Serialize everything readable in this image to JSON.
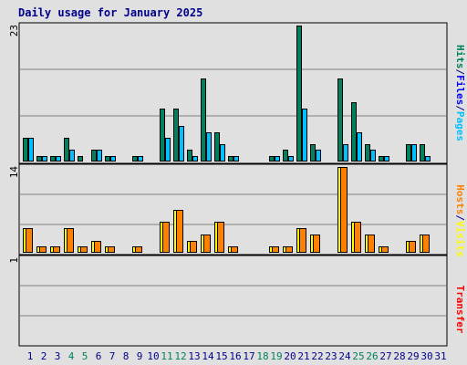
{
  "title": "Daily usage for January 2025",
  "chart_data": [
    {
      "type": "bar",
      "panel": "hits-files-pages",
      "side_labels": [
        {
          "text": "Hits",
          "color": "#00805c"
        },
        {
          "text": "/",
          "color": "#00008b"
        },
        {
          "text": "Files",
          "color": "#0000ff"
        },
        {
          "text": "/",
          "color": "#00008b"
        },
        {
          "text": "Pages",
          "color": "#00c0ff"
        }
      ],
      "ymax_label": "23",
      "ylim": [
        0,
        23
      ],
      "series": [
        {
          "name": "Hits",
          "color": "#00805c",
          "values": [
            4,
            1,
            1,
            4,
            1,
            2,
            1,
            0,
            1,
            0,
            9,
            9,
            2,
            14,
            5,
            1,
            0,
            0,
            1,
            2,
            23,
            3,
            0,
            14,
            10,
            3,
            1,
            0,
            3,
            3,
            0
          ]
        },
        {
          "name": "Files",
          "color": "#0000ff",
          "values": [
            0,
            0,
            0,
            0,
            0,
            0,
            0,
            0,
            0,
            0,
            0,
            0,
            0,
            0,
            0,
            0,
            0,
            0,
            0,
            0,
            0,
            0,
            0,
            0,
            0,
            0,
            0,
            0,
            0,
            0,
            0
          ]
        },
        {
          "name": "Pages",
          "color": "#00c0ff",
          "values": [
            4,
            1,
            1,
            2,
            0,
            2,
            1,
            0,
            1,
            0,
            4,
            6,
            1,
            5,
            3,
            1,
            0,
            0,
            1,
            1,
            9,
            2,
            0,
            3,
            5,
            2,
            1,
            0,
            3,
            1,
            0
          ]
        }
      ]
    },
    {
      "type": "bar",
      "panel": "hosts-visits",
      "side_labels": [
        {
          "text": "Hosts",
          "color": "#ff8000"
        },
        {
          "text": "/",
          "color": "#00008b"
        },
        {
          "text": "Visits",
          "color": "#ffff00"
        }
      ],
      "ymax_label": "14",
      "ylim": [
        0,
        14
      ],
      "series": [
        {
          "name": "Visits",
          "color": "#ffff00",
          "values": [
            4,
            1,
            1,
            4,
            1,
            2,
            1,
            0,
            1,
            0,
            5,
            7,
            2,
            3,
            5,
            1,
            0,
            0,
            1,
            1,
            4,
            3,
            0,
            14,
            5,
            3,
            1,
            0,
            2,
            3,
            0
          ]
        },
        {
          "name": "Hosts",
          "color": "#ff8000",
          "values": [
            4,
            1,
            1,
            4,
            1,
            2,
            1,
            0,
            1,
            0,
            5,
            7,
            2,
            3,
            5,
            1,
            0,
            0,
            1,
            1,
            4,
            3,
            0,
            14,
            5,
            3,
            1,
            0,
            2,
            3,
            0
          ]
        }
      ]
    },
    {
      "type": "bar",
      "panel": "transfer",
      "side_labels": [
        {
          "text": "Transfer",
          "color": "#ff0000"
        }
      ],
      "ymax_label": "1",
      "ylim": [
        0,
        1
      ],
      "series": [
        {
          "name": "Transfer",
          "color": "#ff0000",
          "values": [
            0,
            0,
            0,
            0,
            0,
            0,
            0,
            0,
            0,
            0,
            0,
            0,
            0,
            0,
            0,
            0,
            0,
            0,
            0,
            0,
            0,
            0,
            0,
            0,
            0,
            0,
            0,
            0,
            0,
            0,
            0
          ]
        }
      ]
    }
  ],
  "x_axis": {
    "days": [
      "1",
      "2",
      "3",
      "4",
      "5",
      "6",
      "7",
      "8",
      "9",
      "10",
      "11",
      "12",
      "13",
      "14",
      "15",
      "16",
      "17",
      "18",
      "19",
      "20",
      "21",
      "22",
      "23",
      "24",
      "25",
      "26",
      "27",
      "28",
      "29",
      "30",
      "31"
    ],
    "weekend_days": [
      "4",
      "5",
      "11",
      "12",
      "18",
      "19",
      "25",
      "26"
    ],
    "weekday_color": "#00008b",
    "weekend_color": "#00805c"
  }
}
